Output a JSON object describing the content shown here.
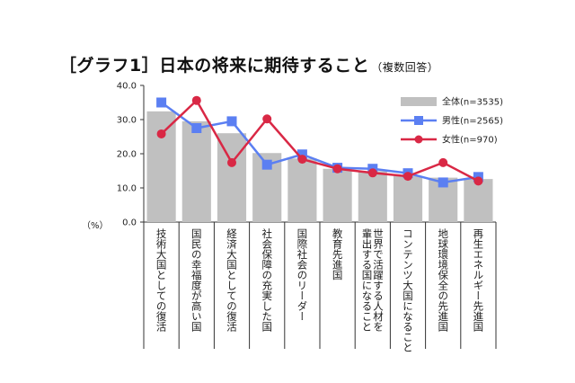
{
  "title": {
    "main": "［グラフ1］日本の将来に期待すること",
    "sub": "（複数回答）"
  },
  "unit_label": "（%）",
  "chart_data": {
    "type": "bar",
    "title": "［グラフ1］日本の将来に期待すること（複数回答）",
    "ylim": [
      0,
      40
    ],
    "yticks": [
      "0.0",
      "10.0",
      "20.0",
      "30.0",
      "40.0"
    ],
    "grid": false,
    "legend_position": "top-right",
    "categories": [
      [
        "技術大国としての復活"
      ],
      [
        "国民の幸福度が高い国"
      ],
      [
        "経済大国としての復活"
      ],
      [
        "社会保障の充実した国"
      ],
      [
        "国際社会のリーダー"
      ],
      [
        "教育先進国"
      ],
      [
        "輩出する国になること",
        "世界で活躍する人材を"
      ],
      [
        "コンテンツ大国になること"
      ],
      [
        "地球環境保全の先進国"
      ],
      [
        "再生エネルギー先進国"
      ]
    ],
    "series": [
      {
        "name": "全体(n=3535)",
        "kind": "bar",
        "color": "#c0c0c0",
        "values": [
          32.4,
          29.5,
          26.0,
          20.2,
          18.6,
          15.6,
          14.9,
          13.5,
          13.0,
          12.6
        ]
      },
      {
        "name": "男性(n=2565)",
        "kind": "line",
        "color": "#5b7ff2",
        "marker": "square",
        "values": [
          35.0,
          27.5,
          29.5,
          16.8,
          19.8,
          15.9,
          15.6,
          14.3,
          11.6,
          13.2
        ]
      },
      {
        "name": "女性(n=970)",
        "kind": "line",
        "color": "#d92845",
        "marker": "circle",
        "values": [
          25.8,
          35.6,
          17.4,
          30.2,
          18.4,
          15.6,
          14.4,
          13.4,
          17.4,
          12.0
        ]
      }
    ]
  }
}
